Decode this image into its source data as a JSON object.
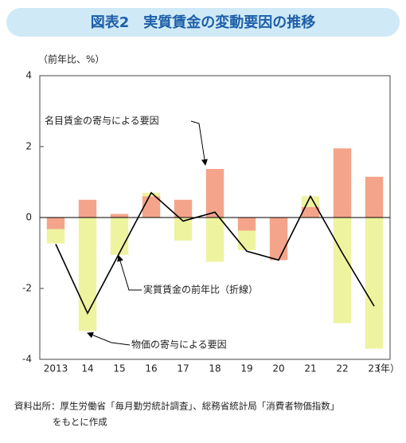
{
  "chart_data": {
    "type": "bar_line",
    "title": "図表2　実質賃金の変動要因の推移",
    "y_label": "（前年比、%）",
    "x_unit": "（年）",
    "categories": [
      "2013",
      "14",
      "15",
      "16",
      "17",
      "18",
      "19",
      "20",
      "21",
      "22",
      "23"
    ],
    "series": [
      {
        "name": "名目賃金の寄与による要因",
        "type": "bar",
        "color": "#f4a48a",
        "values": [
          -0.33,
          0.5,
          0.1,
          0.6,
          0.5,
          1.37,
          -0.37,
          -1.2,
          0.3,
          1.95,
          1.15
        ]
      },
      {
        "name": "物価の寄与による要因",
        "type": "bar",
        "color": "#eef3a0",
        "values": [
          -0.4,
          -3.2,
          -1.05,
          0.1,
          -0.65,
          -1.25,
          -0.55,
          0,
          0.3,
          -2.98,
          -3.7
        ]
      },
      {
        "name": "実質賃金の前年比（折線）",
        "type": "line",
        "color": "#000000",
        "values": [
          -0.75,
          -2.7,
          -1.0,
          0.7,
          -0.1,
          0.15,
          -0.95,
          -1.2,
          0.6,
          -1.0,
          -2.5
        ]
      }
    ],
    "ylim": [
      -4,
      4
    ],
    "yticks": [
      -4,
      -2,
      0,
      2,
      4
    ],
    "source": [
      "資料出所：厚生労働省「毎月勤労統計調査」、総務省統計局「消費者物価指数」",
      "をもとに作成"
    ]
  }
}
